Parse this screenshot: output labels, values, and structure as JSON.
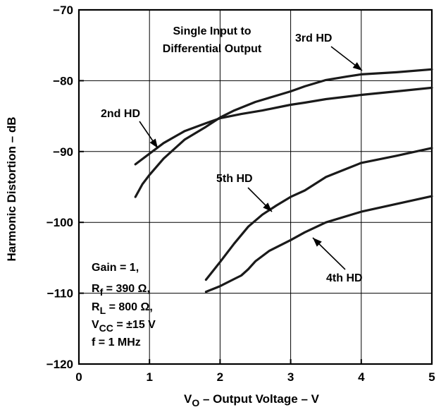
{
  "chart_data": {
    "type": "line",
    "xlabel": "V_O – Output Voltage – V",
    "ylabel": "Harmonic Distortion – dB",
    "xlim": [
      0,
      5
    ],
    "ylim": [
      -120,
      -70
    ],
    "xticks": [
      "0",
      "1",
      "2",
      "3",
      "4",
      "5"
    ],
    "yticks": [
      "−70",
      "−80",
      "−90",
      "−100",
      "−110",
      "−120"
    ],
    "grid": true,
    "title": "Single Input to\nDifferential Output",
    "series": [
      {
        "name": "2nd HD",
        "x": [
          0.8,
          1.0,
          1.2,
          1.5,
          1.8,
          2.0,
          2.3,
          2.6,
          2.9,
          3.0,
          3.2,
          3.5,
          4.0,
          4.5,
          5.0
        ],
        "y": [
          -91.8,
          -90.3,
          -88.8,
          -87.1,
          -86.0,
          -85.3,
          -84.7,
          -84.2,
          -83.6,
          -83.4,
          -83.1,
          -82.6,
          -82.0,
          -81.5,
          -81.0
        ]
      },
      {
        "name": "3rd HD",
        "x": [
          0.8,
          0.9,
          1.0,
          1.2,
          1.5,
          1.8,
          2.0,
          2.2,
          2.5,
          2.8,
          3.0,
          3.2,
          3.5,
          3.8,
          4.0,
          4.5,
          5.0
        ],
        "y": [
          -96.4,
          -94.6,
          -93.3,
          -91.0,
          -88.3,
          -86.5,
          -85.2,
          -84.2,
          -83.0,
          -82.1,
          -81.5,
          -80.8,
          -79.9,
          -79.4,
          -79.1,
          -78.8,
          -78.4
        ]
      },
      {
        "name": "5th HD",
        "x": [
          1.8,
          2.0,
          2.2,
          2.4,
          2.6,
          2.8,
          3.0,
          3.2,
          3.5,
          3.8,
          4.0,
          4.5,
          5.0
        ],
        "y": [
          -108.1,
          -105.6,
          -103.0,
          -100.6,
          -98.9,
          -97.6,
          -96.4,
          -95.5,
          -93.6,
          -92.4,
          -91.6,
          -90.6,
          -89.5
        ]
      },
      {
        "name": "4th HD",
        "x": [
          1.8,
          2.0,
          2.2,
          2.3,
          2.4,
          2.5,
          2.7,
          3.0,
          3.2,
          3.5,
          4.0,
          4.5,
          5.0
        ],
        "y": [
          -109.8,
          -109.0,
          -108.0,
          -107.5,
          -106.6,
          -105.5,
          -104.0,
          -102.5,
          -101.4,
          -100.0,
          -98.5,
          -97.4,
          -96.3
        ]
      }
    ],
    "annotations": {
      "series_labels": [
        "3rd HD",
        "2nd HD",
        "5th HD",
        "4th HD"
      ],
      "conditions": [
        "Gain = 1,",
        "R_f = 390 Ω,",
        "R_L = 800 Ω,",
        "V_CC = ±15 V",
        "f = 1 MHz"
      ]
    }
  }
}
